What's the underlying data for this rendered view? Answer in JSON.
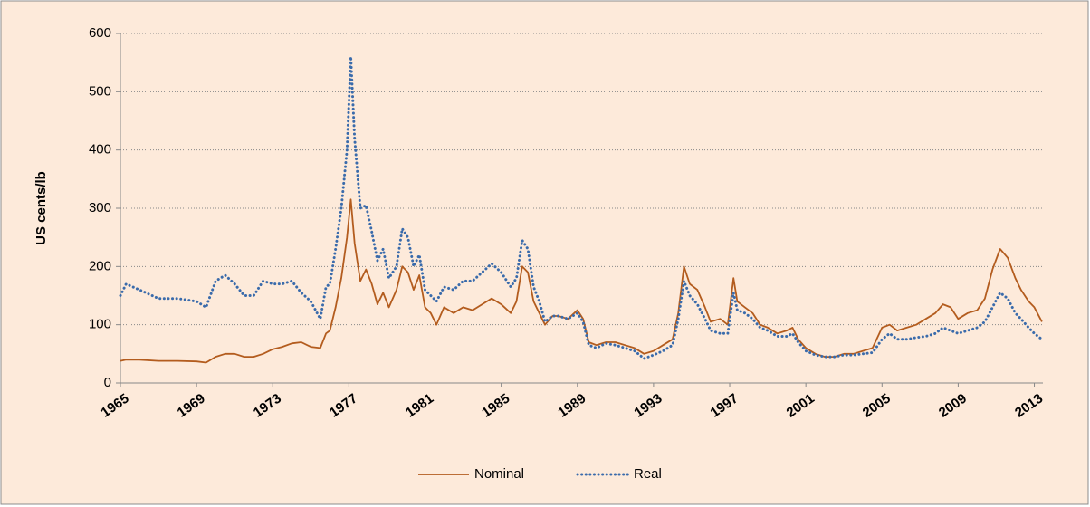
{
  "chart_data": {
    "type": "line",
    "y_label": "US cents/lb",
    "x": [
      1965,
      1965.3,
      1966,
      1967,
      1968,
      1969,
      1969.5,
      1970,
      1970.5,
      1971,
      1971.5,
      1972,
      1972.5,
      1973,
      1973.5,
      1974,
      1974.5,
      1975,
      1975.5,
      1975.8,
      1976,
      1976.3,
      1976.6,
      1976.9,
      1977.1,
      1977.3,
      1977.6,
      1977.9,
      1978.2,
      1978.5,
      1978.8,
      1979.1,
      1979.5,
      1979.8,
      1980.1,
      1980.4,
      1980.7,
      1981,
      1981.3,
      1981.6,
      1982,
      1982.5,
      1983,
      1983.5,
      1984,
      1984.5,
      1985,
      1985.5,
      1985.8,
      1986.1,
      1986.4,
      1986.7,
      1987,
      1987.3,
      1987.7,
      1988,
      1988.5,
      1989,
      1989.3,
      1989.6,
      1990,
      1990.5,
      1991,
      1991.5,
      1992,
      1992.5,
      1993,
      1993.5,
      1994,
      1994.3,
      1994.6,
      1994.9,
      1995.3,
      1995.7,
      1996,
      1996.5,
      1996.9,
      1997.2,
      1997.4,
      1997.8,
      1998.2,
      1998.6,
      1999,
      1999.5,
      2000,
      2000.3,
      2000.6,
      2001,
      2001.5,
      2002,
      2002.5,
      2003,
      2003.5,
      2004,
      2004.5,
      2005,
      2005.4,
      2005.8,
      2006.3,
      2006.8,
      2007.3,
      2007.8,
      2008.2,
      2008.6,
      2009,
      2009.5,
      2010,
      2010.4,
      2010.8,
      2011.2,
      2011.6,
      2012,
      2012.3,
      2012.7,
      2013,
      2013.4
    ],
    "series": [
      {
        "name": "Nominal",
        "color": "#b35c1e",
        "dash": false,
        "values": [
          38,
          40,
          40,
          38,
          38,
          37,
          35,
          45,
          50,
          50,
          45,
          45,
          50,
          58,
          62,
          68,
          70,
          62,
          60,
          85,
          90,
          130,
          180,
          250,
          315,
          240,
          175,
          195,
          170,
          135,
          155,
          130,
          160,
          200,
          190,
          160,
          185,
          130,
          120,
          100,
          130,
          120,
          130,
          125,
          135,
          145,
          135,
          120,
          140,
          200,
          190,
          140,
          120,
          100,
          115,
          115,
          110,
          125,
          110,
          70,
          65,
          70,
          70,
          65,
          60,
          50,
          55,
          65,
          75,
          120,
          200,
          170,
          160,
          130,
          105,
          110,
          100,
          180,
          140,
          130,
          120,
          100,
          95,
          85,
          90,
          95,
          75,
          60,
          50,
          45,
          45,
          50,
          50,
          55,
          60,
          95,
          100,
          90,
          95,
          100,
          110,
          120,
          135,
          130,
          110,
          120,
          125,
          145,
          195,
          230,
          215,
          180,
          160,
          140,
          130,
          105
        ]
      },
      {
        "name": "Real",
        "color": "#3a6bab",
        "dash": true,
        "values": [
          150,
          170,
          160,
          145,
          145,
          140,
          130,
          175,
          185,
          170,
          150,
          150,
          175,
          170,
          170,
          175,
          155,
          140,
          110,
          165,
          170,
          230,
          300,
          400,
          560,
          420,
          300,
          305,
          260,
          210,
          230,
          180,
          200,
          265,
          250,
          200,
          220,
          160,
          150,
          140,
          165,
          160,
          175,
          175,
          190,
          205,
          190,
          165,
          180,
          245,
          230,
          165,
          140,
          105,
          115,
          115,
          110,
          120,
          105,
          65,
          60,
          68,
          65,
          60,
          55,
          42,
          48,
          55,
          65,
          110,
          175,
          150,
          135,
          110,
          90,
          85,
          85,
          155,
          125,
          120,
          110,
          95,
          90,
          80,
          80,
          85,
          70,
          55,
          48,
          45,
          45,
          48,
          48,
          50,
          52,
          75,
          85,
          75,
          75,
          78,
          80,
          85,
          95,
          90,
          85,
          90,
          95,
          105,
          130,
          155,
          145,
          120,
          110,
          95,
          85,
          75
        ]
      }
    ],
    "xlim": [
      1965,
      2013.45
    ],
    "ylim": [
      0,
      600
    ],
    "xticks": [
      1965,
      1969,
      1973,
      1977,
      1981,
      1985,
      1989,
      1993,
      1997,
      2001,
      2005,
      2009,
      2013
    ],
    "yticks": [
      0,
      100,
      200,
      300,
      400,
      500,
      600
    ],
    "grid": true,
    "legend": "bottom"
  }
}
